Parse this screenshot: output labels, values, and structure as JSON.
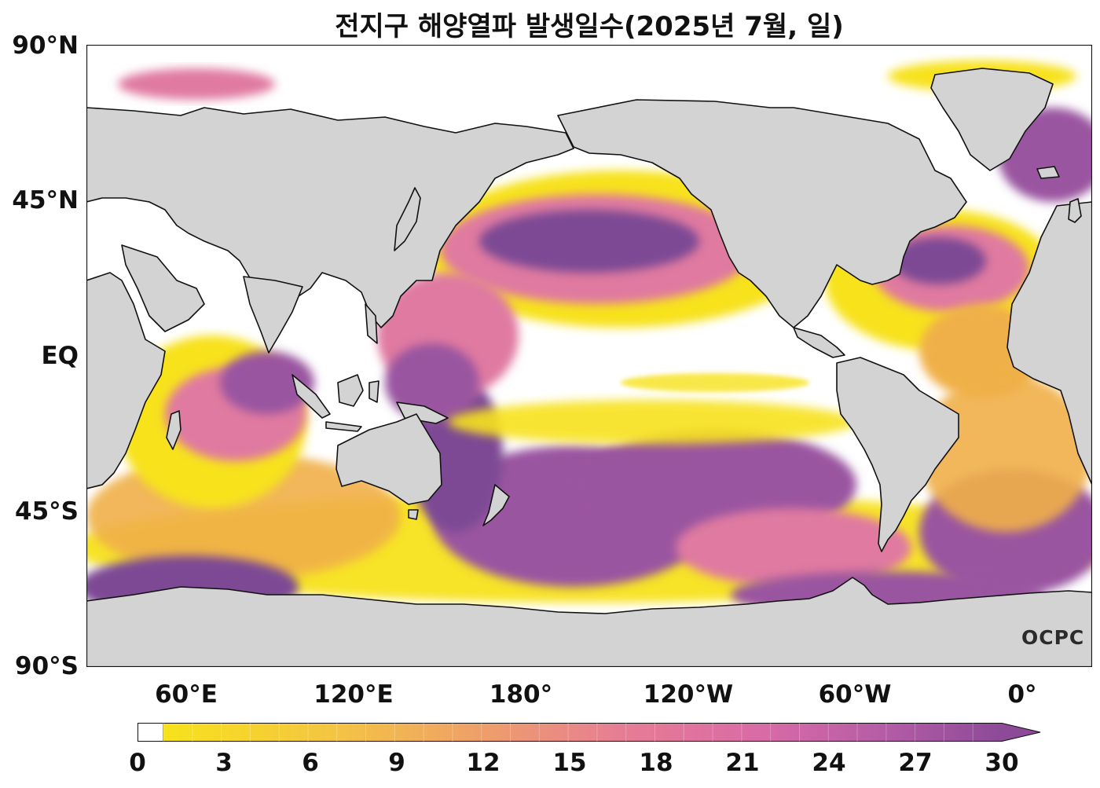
{
  "title": "전지구 해양열파 발생일수(2025년 7월, 일)",
  "map": {
    "projection": "PlateCarree",
    "lon_range": [
      25,
      385
    ],
    "lat_range": [
      -90,
      90
    ],
    "land_color": "#d3d3d3",
    "no_heatwave_color": "#ffffff",
    "logo_text": "OCPC",
    "lat_ticks": [
      {
        "lat": 90,
        "label": "90°N"
      },
      {
        "lat": 45,
        "label": "45°N"
      },
      {
        "lat": 0,
        "label": "EQ"
      },
      {
        "lat": -45,
        "label": "45°S"
      },
      {
        "lat": -90,
        "label": "90°S"
      }
    ],
    "lon_ticks": [
      {
        "lon": 60,
        "label": "60°E"
      },
      {
        "lon": 120,
        "label": "120°E"
      },
      {
        "lon": 180,
        "label": "180°"
      },
      {
        "lon": 240,
        "label": "120°W"
      },
      {
        "lon": 300,
        "label": "60°W"
      },
      {
        "lon": 360,
        "label": "0°"
      }
    ]
  },
  "colorbar": {
    "min": 0,
    "max": 30,
    "extend": "max",
    "ticks": [
      "0",
      "3",
      "6",
      "9",
      "12",
      "15",
      "18",
      "21",
      "24",
      "27",
      "30"
    ],
    "tick_values": [
      0,
      3,
      6,
      9,
      12,
      15,
      18,
      21,
      24,
      27,
      30
    ],
    "colors": [
      "#ffffff",
      "#f7e21b",
      "#f4c542",
      "#ee9f6a",
      "#e67c95",
      "#d86aa7",
      "#b55ca6",
      "#8c4a98"
    ]
  }
}
